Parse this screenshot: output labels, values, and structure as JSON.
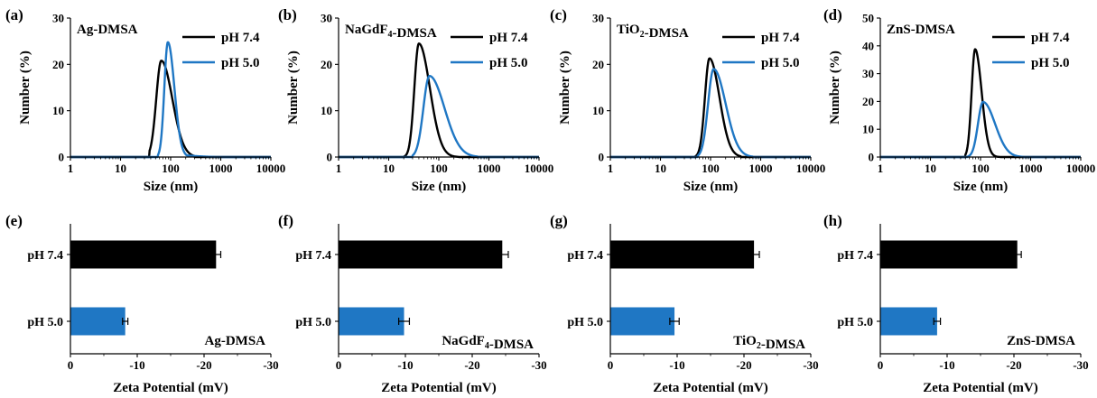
{
  "colors": {
    "ph74": "#000000",
    "ph50": "#1f77c4"
  },
  "chart_data": [
    {
      "panel": "(a)",
      "type": "line",
      "title": "Ag-DMSA",
      "xlabel": "Size (nm)",
      "ylabel": "Number (%)",
      "xscale": "log",
      "xlim": [
        1,
        10000
      ],
      "ylim": [
        0,
        30
      ],
      "xticks": [
        "1",
        "10",
        "100",
        "1000",
        "10000"
      ],
      "yticks": [
        "0",
        "10",
        "20",
        "30"
      ],
      "legend": "top-right",
      "series": [
        {
          "name": "pH 7.4",
          "color": "#000000",
          "peak_x": 65,
          "peak_y": 20.8,
          "lo": 38,
          "hi": 300,
          "lw": 0.1,
          "rw": 0.22
        },
        {
          "name": "pH 5.0",
          "color": "#1f77c4",
          "peak_x": 88,
          "peak_y": 24.8,
          "lo": 55,
          "hi": 900,
          "lw": 0.07,
          "rw": 0.13,
          "tail": 0.9
        }
      ]
    },
    {
      "panel": "(b)",
      "type": "line",
      "title": "NaGdF4-DMSA",
      "xlabel": "Size (nm)",
      "ylabel": "Number (%)",
      "xscale": "log",
      "xlim": [
        1,
        10000
      ],
      "ylim": [
        0,
        30
      ],
      "xticks": [
        "1",
        "10",
        "100",
        "1000",
        "10000"
      ],
      "yticks": [
        "0",
        "10",
        "20",
        "30"
      ],
      "legend": "top-right",
      "series": [
        {
          "name": "pH 7.4",
          "color": "#000000",
          "peak_x": 40,
          "peak_y": 24.5,
          "lo": 20,
          "hi": 250,
          "lw": 0.09,
          "rw": 0.22
        },
        {
          "name": "pH 5.0",
          "color": "#1f77c4",
          "peak_x": 65,
          "peak_y": 17.5,
          "lo": 30,
          "hi": 600,
          "lw": 0.12,
          "rw": 0.3
        }
      ]
    },
    {
      "panel": "(c)",
      "type": "line",
      "title": "TiO2-DMSA",
      "xlabel": "Size (nm)",
      "ylabel": "Number (%)",
      "xscale": "log",
      "xlim": [
        1,
        10000
      ],
      "ylim": [
        0,
        30
      ],
      "xticks": [
        "1",
        "10",
        "100",
        "1000",
        "10000"
      ],
      "yticks": [
        "0",
        "10",
        "20",
        "30"
      ],
      "legend": "top-right",
      "series": [
        {
          "name": "pH 7.4",
          "color": "#000000",
          "peak_x": 95,
          "peak_y": 21.3,
          "lo": 50,
          "hi": 400,
          "lw": 0.09,
          "rw": 0.2
        },
        {
          "name": "pH 5.0",
          "color": "#1f77c4",
          "peak_x": 115,
          "peak_y": 19.0,
          "lo": 55,
          "hi": 700,
          "lw": 0.11,
          "rw": 0.24
        }
      ]
    },
    {
      "panel": "(d)",
      "type": "line",
      "title": "ZnS-DMSA",
      "xlabel": "Size (nm)",
      "ylabel": "Number (%)",
      "xscale": "log",
      "xlim": [
        1,
        10000
      ],
      "ylim": [
        0,
        50
      ],
      "xticks": [
        "1",
        "10",
        "100",
        "1000",
        "10000"
      ],
      "yticks": [
        "0",
        "10",
        "20",
        "30",
        "40",
        "50"
      ],
      "legend": "top-right",
      "series": [
        {
          "name": "pH 7.4",
          "color": "#000000",
          "peak_x": 78,
          "peak_y": 38.8,
          "lo": 50,
          "hi": 250,
          "lw": 0.07,
          "rw": 0.13
        },
        {
          "name": "pH 5.0",
          "color": "#1f77c4",
          "peak_x": 112,
          "peak_y": 19.8,
          "lo": 55,
          "hi": 700,
          "lw": 0.1,
          "rw": 0.24
        }
      ]
    },
    {
      "panel": "(e)",
      "type": "bar",
      "orientation": "horizontal",
      "title": "Ag-DMSA",
      "xlabel": "Zeta Potential (mV)",
      "xlim": [
        0,
        -30
      ],
      "xticks": [
        "0",
        "-10",
        "-20",
        "-30"
      ],
      "categories": [
        "pH 7.4",
        "pH 5.0"
      ],
      "values": [
        -21.8,
        -8.2
      ],
      "errors": [
        0.7,
        0.4
      ]
    },
    {
      "panel": "(f)",
      "type": "bar",
      "orientation": "horizontal",
      "title": "NaGdF4-DMSA",
      "xlabel": "Zeta Potential (mV)",
      "xlim": [
        0,
        -30
      ],
      "xticks": [
        "0",
        "-10",
        "-20",
        "-30"
      ],
      "categories": [
        "pH 7.4",
        "pH 5.0"
      ],
      "values": [
        -24.5,
        -9.8
      ],
      "errors": [
        0.9,
        0.8
      ]
    },
    {
      "panel": "(g)",
      "type": "bar",
      "orientation": "horizontal",
      "title": "TiO2-DMSA",
      "xlabel": "Zeta Potential (mV)",
      "xlim": [
        0,
        -30
      ],
      "xticks": [
        "0",
        "-10",
        "-20",
        "-30"
      ],
      "categories": [
        "pH 7.4",
        "pH 5.0"
      ],
      "values": [
        -21.5,
        -9.6
      ],
      "errors": [
        0.8,
        0.7
      ]
    },
    {
      "panel": "(h)",
      "type": "bar",
      "orientation": "horizontal",
      "title": "ZnS-DMSA",
      "xlabel": "Zeta Potential (mV)",
      "xlim": [
        0,
        -30
      ],
      "xticks": [
        "0",
        "-10",
        "-20",
        "-30"
      ],
      "categories": [
        "pH 7.4",
        "pH 5.0"
      ],
      "values": [
        -20.5,
        -8.5
      ],
      "errors": [
        0.6,
        0.5
      ]
    }
  ]
}
